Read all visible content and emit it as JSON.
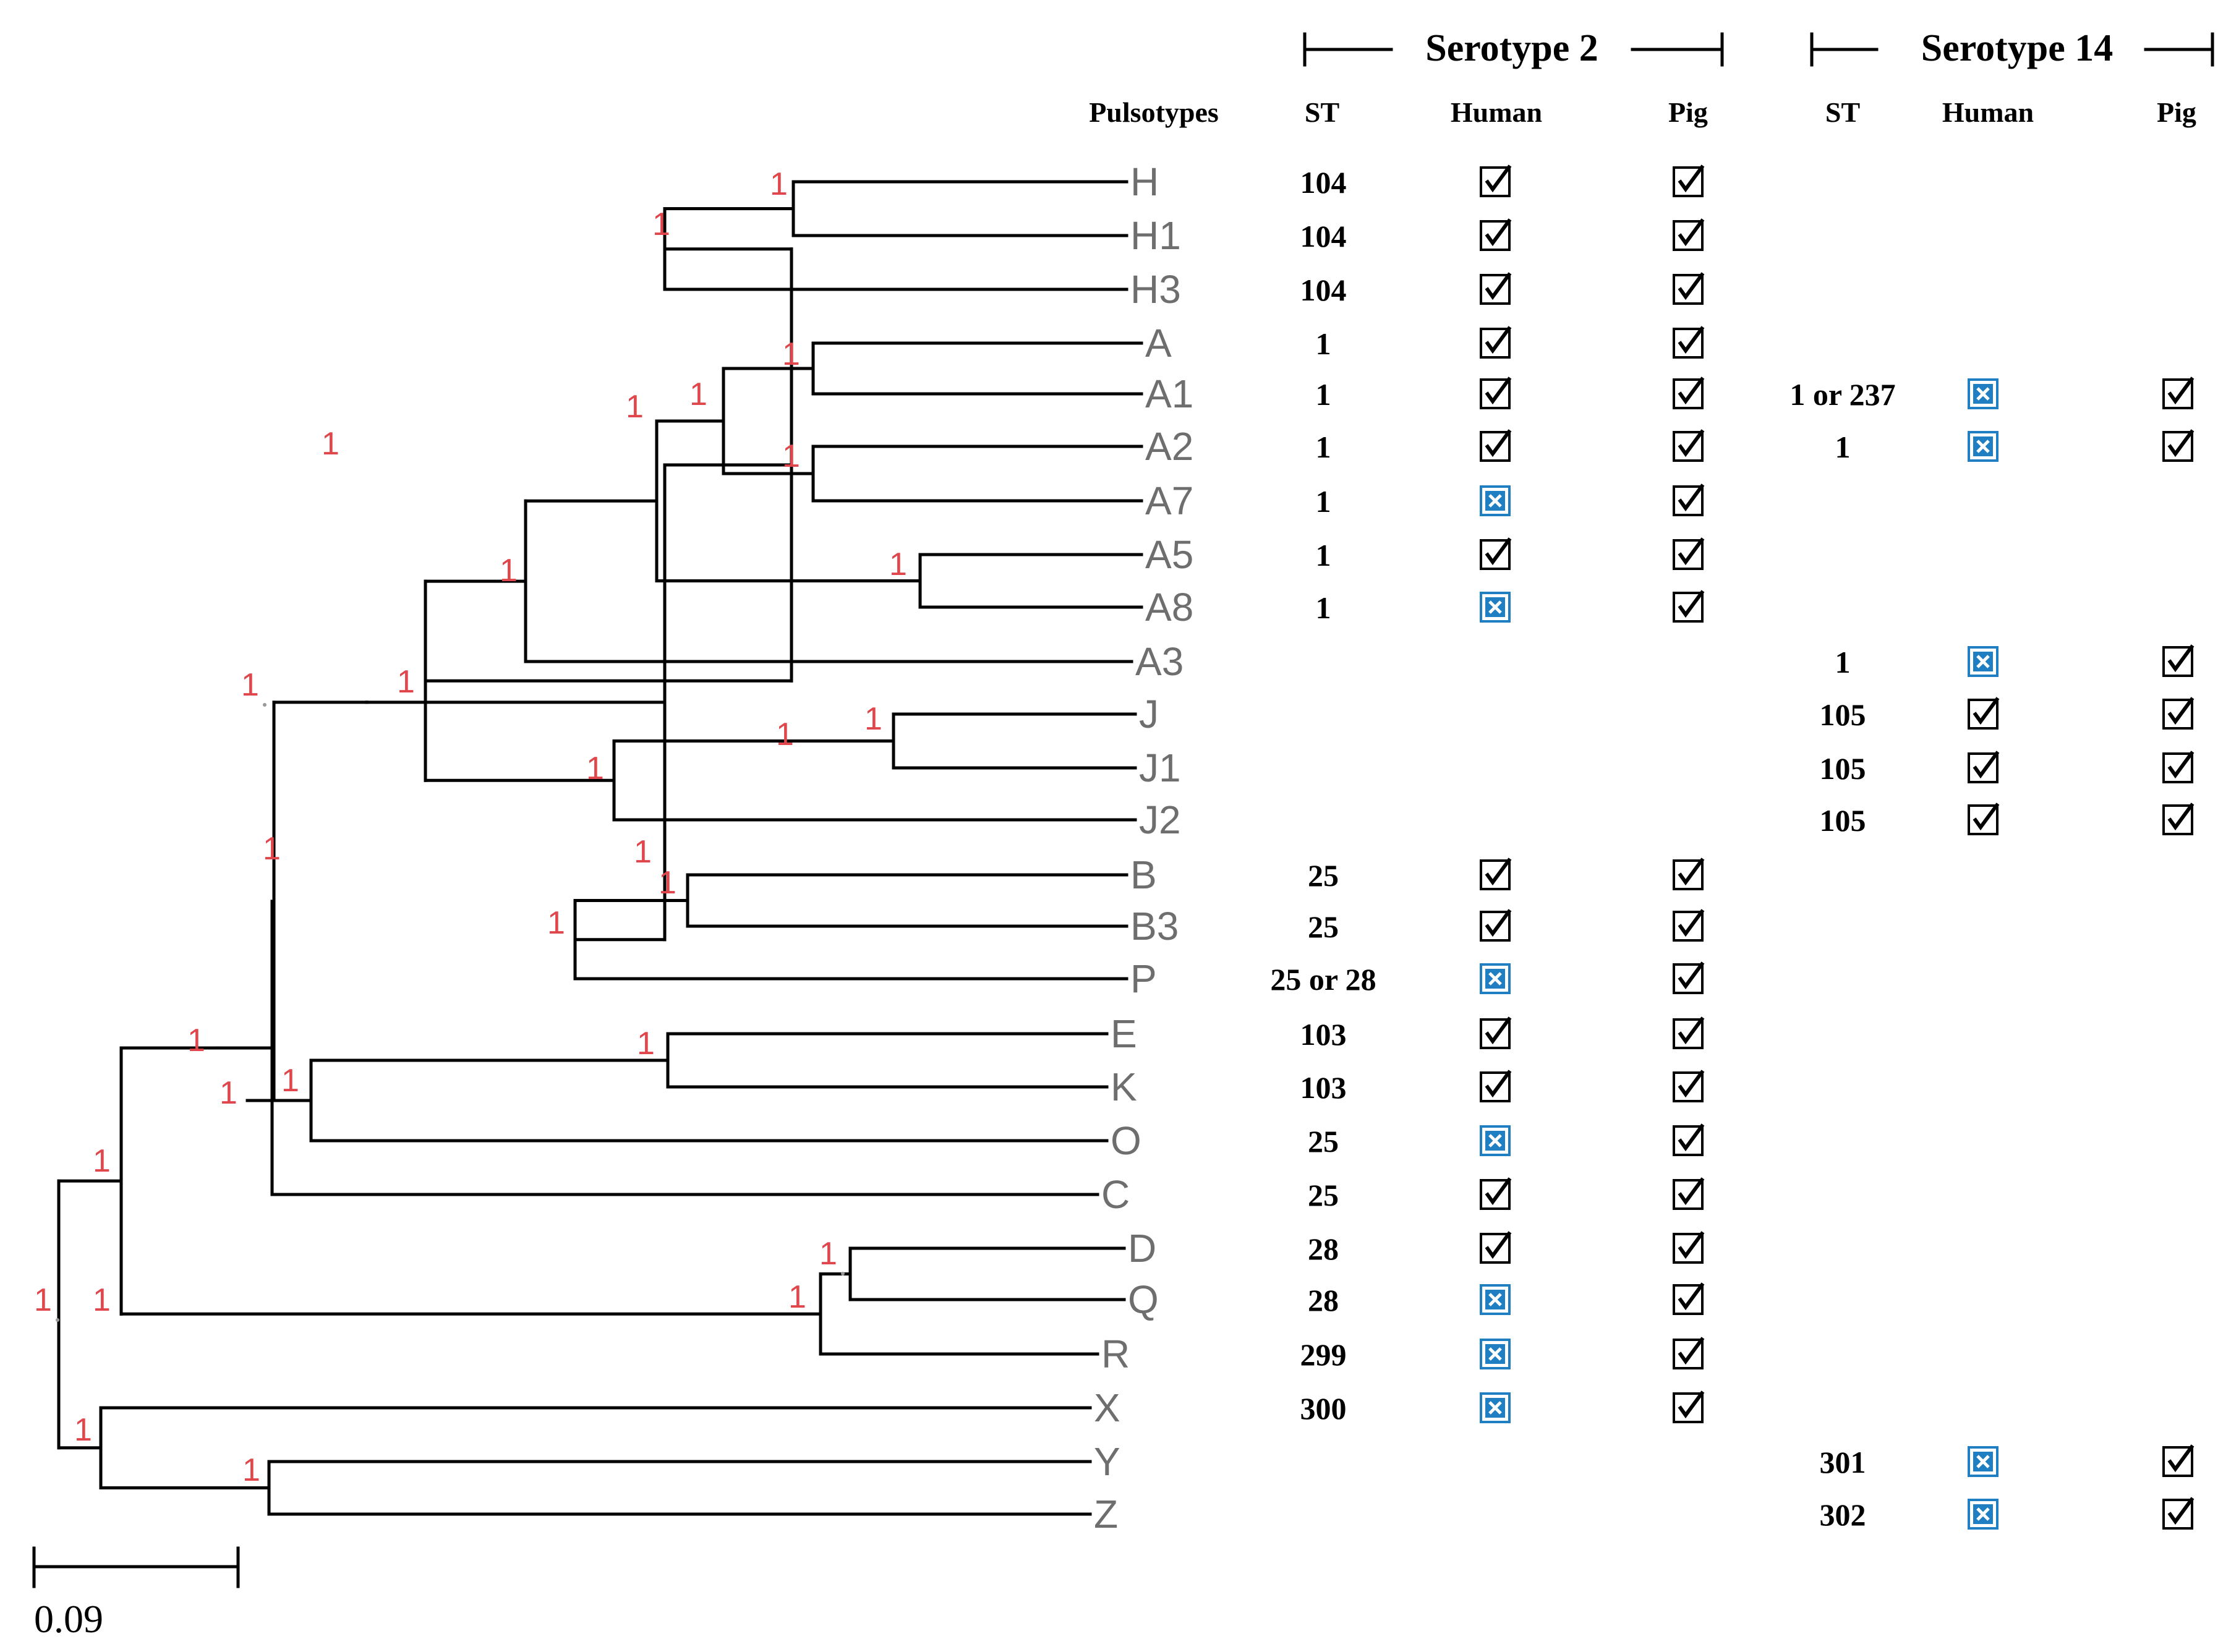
{
  "scale_bar": {
    "label": "0.09",
    "value": 0.09
  },
  "columns": {
    "pulsotypes": "Pulsotypes",
    "st": "ST",
    "human": "Human",
    "pig": "Pig"
  },
  "groups": {
    "serotype2": "Serotype 2",
    "serotype14": "Serotype 14"
  },
  "support_value": "1",
  "status_icons": {
    "checked": "check-box-icon",
    "absent": "blue-x-box-icon"
  },
  "colors": {
    "support": "#e0474c",
    "leaf": "#6e6e6e",
    "absent": "#1f7fc2",
    "line": "#000000"
  },
  "rows": [
    {
      "leaf": "H",
      "s2": {
        "st": "104",
        "human": true,
        "pig": true
      }
    },
    {
      "leaf": "H1",
      "s2": {
        "st": "104",
        "human": true,
        "pig": true
      }
    },
    {
      "leaf": "H3",
      "s2": {
        "st": "104",
        "human": true,
        "pig": true
      }
    },
    {
      "leaf": "A",
      "s2": {
        "st": "1",
        "human": true,
        "pig": true
      }
    },
    {
      "leaf": "A1",
      "s2": {
        "st": "1",
        "human": true,
        "pig": true
      },
      "s14": {
        "st": "1 or 237",
        "human": false,
        "pig": true
      }
    },
    {
      "leaf": "A2",
      "s2": {
        "st": "1",
        "human": true,
        "pig": true
      },
      "s14": {
        "st": "1",
        "human": false,
        "pig": true
      }
    },
    {
      "leaf": "A7",
      "s2": {
        "st": "1",
        "human": false,
        "pig": true
      }
    },
    {
      "leaf": "A5",
      "s2": {
        "st": "1",
        "human": true,
        "pig": true
      }
    },
    {
      "leaf": "A8",
      "s2": {
        "st": "1",
        "human": false,
        "pig": true
      }
    },
    {
      "leaf": "A3",
      "s14": {
        "st": "1",
        "human": false,
        "pig": true
      }
    },
    {
      "leaf": "J",
      "s14": {
        "st": "105",
        "human": true,
        "pig": true
      }
    },
    {
      "leaf": "J1",
      "s14": {
        "st": "105",
        "human": true,
        "pig": true
      }
    },
    {
      "leaf": "J2",
      "s14": {
        "st": "105",
        "human": true,
        "pig": true
      }
    },
    {
      "leaf": "B",
      "s2": {
        "st": "25",
        "human": true,
        "pig": true
      }
    },
    {
      "leaf": "B3",
      "s2": {
        "st": "25",
        "human": true,
        "pig": true
      }
    },
    {
      "leaf": "P",
      "s2": {
        "st": "25 or 28",
        "human": false,
        "pig": true
      }
    },
    {
      "leaf": "E",
      "s2": {
        "st": "103",
        "human": true,
        "pig": true
      }
    },
    {
      "leaf": "K",
      "s2": {
        "st": "103",
        "human": true,
        "pig": true
      }
    },
    {
      "leaf": "O",
      "s2": {
        "st": "25",
        "human": false,
        "pig": true
      }
    },
    {
      "leaf": "C",
      "s2": {
        "st": "25",
        "human": true,
        "pig": true
      }
    },
    {
      "leaf": "D",
      "s2": {
        "st": "28",
        "human": true,
        "pig": true
      }
    },
    {
      "leaf": "Q",
      "s2": {
        "st": "28",
        "human": false,
        "pig": true
      }
    },
    {
      "leaf": "R",
      "s2": {
        "st": "299",
        "human": false,
        "pig": true
      }
    },
    {
      "leaf": "X",
      "s2": {
        "st": "300",
        "human": false,
        "pig": true
      }
    },
    {
      "leaf": "Y",
      "s14": {
        "st": "301",
        "human": false,
        "pig": true
      }
    },
    {
      "leaf": "Z",
      "s14": {
        "st": "302",
        "human": false,
        "pig": true
      }
    }
  ]
}
